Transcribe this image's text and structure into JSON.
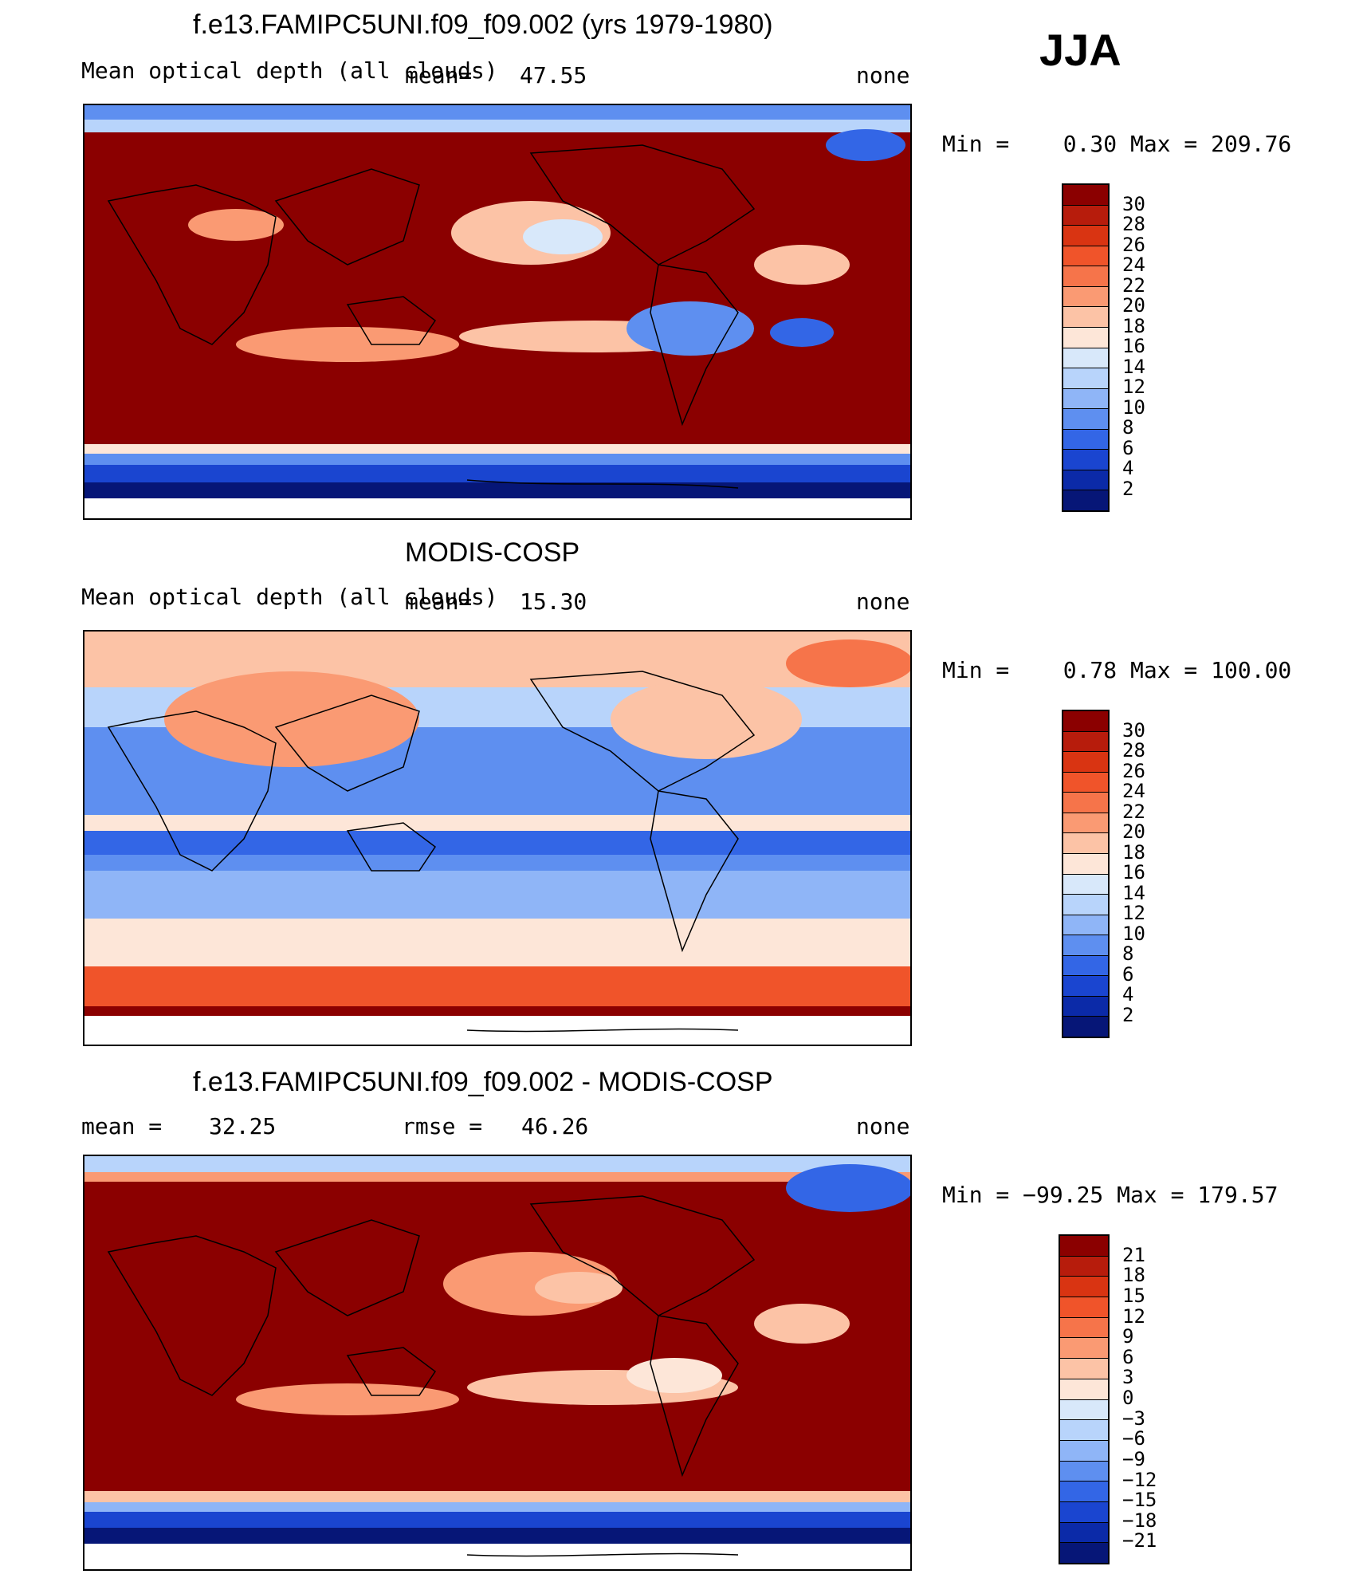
{
  "season": "JJA",
  "panels": [
    {
      "title": "f.e13.FAMIPC5UNI.f09_f09.002 (yrs 1979-1980)",
      "variable": "Mean optical depth (all clouds)",
      "stat_label": "mean=",
      "stat_value": "47.55",
      "stat2_label": "",
      "stat2_value": "",
      "units": "none",
      "minmax": "Min =    0.30 Max = 209.76",
      "colorbar": {
        "ticks": [
          "30",
          "28",
          "26",
          "24",
          "22",
          "20",
          "18",
          "16",
          "14",
          "12",
          "10",
          "8",
          "6",
          "4",
          "2"
        ],
        "colors": [
          "#8b0000",
          "#b71c0c",
          "#d93412",
          "#f0542a",
          "#f6744a",
          "#fa9a73",
          "#fcc3a6",
          "#fde6d8",
          "#d8e8fa",
          "#b8d4fb",
          "#8fb5f7",
          "#5e8ff0",
          "#3366e6",
          "#1a45d0",
          "#0b2aa8",
          "#061677"
        ]
      }
    },
    {
      "title": "MODIS-COSP",
      "variable": "Mean optical depth (all clouds)",
      "stat_label": "mean=",
      "stat_value": "15.30",
      "stat2_label": "",
      "stat2_value": "",
      "units": "none",
      "minmax": "Min =    0.78 Max = 100.00",
      "colorbar": {
        "ticks": [
          "30",
          "28",
          "26",
          "24",
          "22",
          "20",
          "18",
          "16",
          "14",
          "12",
          "10",
          "8",
          "6",
          "4",
          "2"
        ],
        "colors": [
          "#8b0000",
          "#b71c0c",
          "#d93412",
          "#f0542a",
          "#f6744a",
          "#fa9a73",
          "#fcc3a6",
          "#fde6d8",
          "#d8e8fa",
          "#b8d4fb",
          "#8fb5f7",
          "#5e8ff0",
          "#3366e6",
          "#1a45d0",
          "#0b2aa8",
          "#061677"
        ]
      }
    },
    {
      "title": "f.e13.FAMIPC5UNI.f09_f09.002 - MODIS-COSP",
      "variable": "",
      "stat_label": "mean =",
      "stat_value": "32.25",
      "stat2_label": "rmse =",
      "stat2_value": "46.26",
      "units": "none",
      "minmax": "Min = −99.25 Max = 179.57",
      "colorbar": {
        "ticks": [
          "21",
          "18",
          "15",
          "12",
          "9",
          "6",
          "3",
          "0",
          "−3",
          "−6",
          "−9",
          "−12",
          "−15",
          "−18",
          "−21"
        ],
        "colors": [
          "#8b0000",
          "#b71c0c",
          "#d93412",
          "#f0542a",
          "#f6744a",
          "#fa9a73",
          "#fcc3a6",
          "#fde6d8",
          "#d8e8fa",
          "#b8d4fb",
          "#8fb5f7",
          "#5e8ff0",
          "#3366e6",
          "#1a45d0",
          "#0b2aa8",
          "#061677"
        ]
      }
    }
  ]
}
